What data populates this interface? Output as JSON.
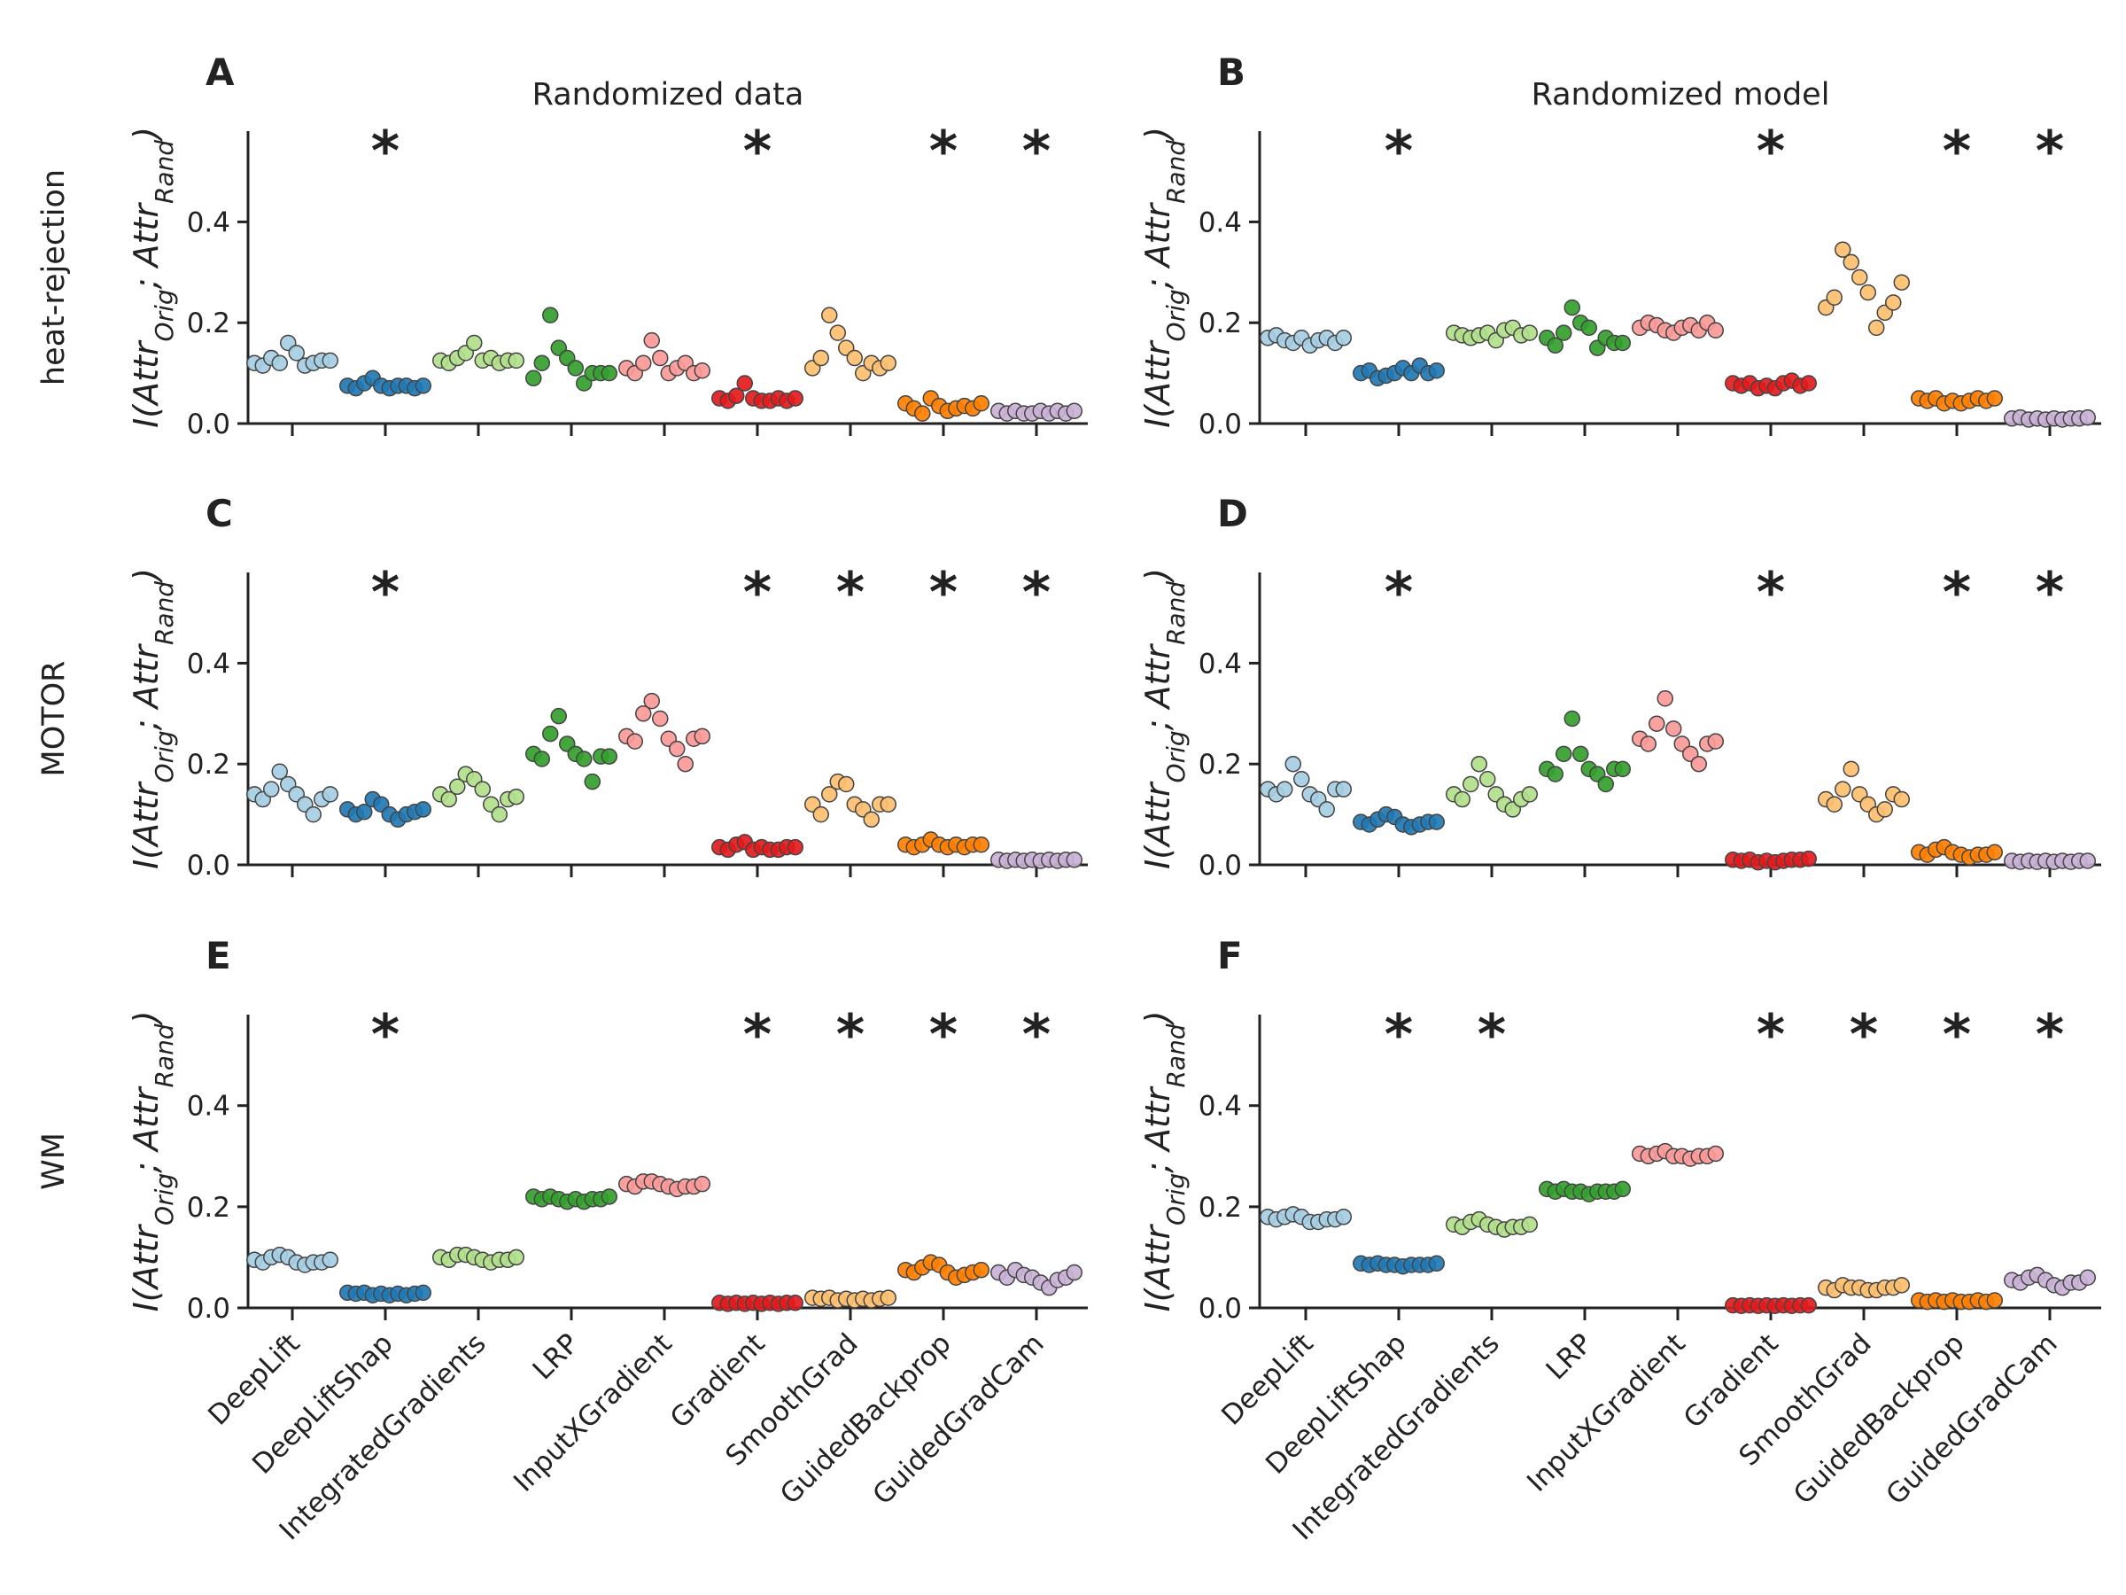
{
  "chart_data": {
    "type": "scatter",
    "subtype": "strip/swarm plot",
    "column_titles": [
      "Randomized data",
      "Randomized model"
    ],
    "row_labels": [
      "heat-rejection",
      "MOTOR",
      "WM"
    ],
    "categories": [
      "DeepLift",
      "DeepLiftShap",
      "IntegratedGradients",
      "LRP",
      "InputXGradient",
      "Gradient",
      "SmoothGrad",
      "GuidedBackprop",
      "GuidedGradCam"
    ],
    "category_colors": [
      "#a6cee3",
      "#1f78b4",
      "#b2df8a",
      "#33a02c",
      "#fb9a99",
      "#e31a1c",
      "#fdbf6f",
      "#ff7f00",
      "#cab2d6"
    ],
    "ylabel": "I(Attr_Orig; Attr_Rand)",
    "ylabel_parts": {
      "open": "I(Attr",
      "sub1": "Orig",
      "mid": "; Attr",
      "sub2": "Rand",
      "close": ")"
    },
    "ylim": [
      0,
      0.58
    ],
    "yticks": [
      "0.0",
      "0.2",
      "0.4"
    ],
    "significance_marker": "*",
    "panels": [
      {
        "letter": "A",
        "row": "heat-rejection",
        "condition": "Randomized data",
        "significant": [
          "DeepLiftShap",
          "Gradient",
          "GuidedBackprop",
          "GuidedGradCam"
        ],
        "values": [
          [
            0.12,
            0.115,
            0.13,
            0.12,
            0.16,
            0.14,
            0.115,
            0.12,
            0.125,
            0.125
          ],
          [
            0.075,
            0.07,
            0.08,
            0.09,
            0.075,
            0.07,
            0.075,
            0.075,
            0.07,
            0.075
          ],
          [
            0.125,
            0.12,
            0.13,
            0.14,
            0.16,
            0.125,
            0.13,
            0.12,
            0.125,
            0.125
          ],
          [
            0.09,
            0.12,
            0.215,
            0.15,
            0.13,
            0.11,
            0.08,
            0.1,
            0.1,
            0.1
          ],
          [
            0.11,
            0.1,
            0.12,
            0.165,
            0.13,
            0.1,
            0.11,
            0.12,
            0.1,
            0.105
          ],
          [
            0.05,
            0.045,
            0.055,
            0.08,
            0.05,
            0.045,
            0.045,
            0.05,
            0.045,
            0.05
          ],
          [
            0.11,
            0.13,
            0.215,
            0.18,
            0.15,
            0.13,
            0.1,
            0.12,
            0.11,
            0.12
          ],
          [
            0.04,
            0.03,
            0.02,
            0.05,
            0.035,
            0.025,
            0.03,
            0.035,
            0.03,
            0.04
          ],
          [
            0.025,
            0.02,
            0.025,
            0.02,
            0.02,
            0.025,
            0.02,
            0.025,
            0.02,
            0.025
          ]
        ]
      },
      {
        "letter": "B",
        "row": "heat-rejection",
        "condition": "Randomized model",
        "significant": [
          "DeepLiftShap",
          "Gradient",
          "GuidedBackprop",
          "GuidedGradCam"
        ],
        "values": [
          [
            0.17,
            0.175,
            0.165,
            0.16,
            0.17,
            0.155,
            0.165,
            0.17,
            0.16,
            0.17
          ],
          [
            0.1,
            0.105,
            0.09,
            0.095,
            0.1,
            0.11,
            0.1,
            0.115,
            0.1,
            0.105
          ],
          [
            0.18,
            0.175,
            0.17,
            0.175,
            0.18,
            0.165,
            0.185,
            0.19,
            0.175,
            0.18
          ],
          [
            0.17,
            0.155,
            0.18,
            0.23,
            0.2,
            0.19,
            0.15,
            0.17,
            0.16,
            0.16
          ],
          [
            0.19,
            0.2,
            0.195,
            0.185,
            0.18,
            0.19,
            0.195,
            0.185,
            0.2,
            0.185
          ],
          [
            0.08,
            0.075,
            0.08,
            0.07,
            0.075,
            0.07,
            0.08,
            0.085,
            0.075,
            0.08
          ],
          [
            0.23,
            0.25,
            0.345,
            0.32,
            0.29,
            0.26,
            0.19,
            0.22,
            0.24,
            0.28
          ],
          [
            0.05,
            0.045,
            0.05,
            0.04,
            0.045,
            0.04,
            0.045,
            0.05,
            0.045,
            0.05
          ],
          [
            0.01,
            0.012,
            0.008,
            0.01,
            0.008,
            0.01,
            0.008,
            0.01,
            0.01,
            0.012
          ]
        ]
      },
      {
        "letter": "C",
        "row": "MOTOR",
        "condition": "Randomized data",
        "significant": [
          "DeepLiftShap",
          "Gradient",
          "SmoothGrad",
          "GuidedBackprop",
          "GuidedGradCam"
        ],
        "values": [
          [
            0.14,
            0.13,
            0.15,
            0.185,
            0.16,
            0.14,
            0.12,
            0.1,
            0.13,
            0.14
          ],
          [
            0.11,
            0.1,
            0.105,
            0.13,
            0.12,
            0.1,
            0.09,
            0.1,
            0.105,
            0.11
          ],
          [
            0.14,
            0.13,
            0.155,
            0.18,
            0.17,
            0.15,
            0.12,
            0.1,
            0.13,
            0.135
          ],
          [
            0.22,
            0.21,
            0.26,
            0.295,
            0.24,
            0.22,
            0.21,
            0.165,
            0.215,
            0.215
          ],
          [
            0.255,
            0.245,
            0.3,
            0.325,
            0.29,
            0.25,
            0.23,
            0.2,
            0.25,
            0.255
          ],
          [
            0.035,
            0.03,
            0.04,
            0.045,
            0.03,
            0.035,
            0.03,
            0.03,
            0.035,
            0.035
          ],
          [
            0.12,
            0.1,
            0.14,
            0.165,
            0.16,
            0.12,
            0.11,
            0.09,
            0.12,
            0.12
          ],
          [
            0.04,
            0.035,
            0.04,
            0.05,
            0.04,
            0.035,
            0.04,
            0.035,
            0.04,
            0.04
          ],
          [
            0.01,
            0.008,
            0.01,
            0.008,
            0.01,
            0.008,
            0.01,
            0.008,
            0.01,
            0.01
          ]
        ]
      },
      {
        "letter": "D",
        "row": "MOTOR",
        "condition": "Randomized model",
        "significant": [
          "DeepLiftShap",
          "Gradient",
          "GuidedBackprop",
          "GuidedGradCam"
        ],
        "values": [
          [
            0.15,
            0.14,
            0.15,
            0.2,
            0.17,
            0.14,
            0.13,
            0.11,
            0.15,
            0.15
          ],
          [
            0.085,
            0.08,
            0.09,
            0.1,
            0.095,
            0.08,
            0.075,
            0.08,
            0.085,
            0.085
          ],
          [
            0.14,
            0.13,
            0.16,
            0.2,
            0.17,
            0.14,
            0.12,
            0.11,
            0.13,
            0.14
          ],
          [
            0.19,
            0.18,
            0.22,
            0.29,
            0.22,
            0.19,
            0.18,
            0.16,
            0.19,
            0.19
          ],
          [
            0.25,
            0.24,
            0.28,
            0.33,
            0.27,
            0.24,
            0.22,
            0.2,
            0.24,
            0.245
          ],
          [
            0.01,
            0.008,
            0.01,
            0.005,
            0.008,
            0.005,
            0.008,
            0.01,
            0.01,
            0.012
          ],
          [
            0.13,
            0.12,
            0.15,
            0.19,
            0.14,
            0.12,
            0.1,
            0.11,
            0.14,
            0.13
          ],
          [
            0.025,
            0.02,
            0.03,
            0.035,
            0.025,
            0.02,
            0.015,
            0.02,
            0.02,
            0.025
          ],
          [
            0.008,
            0.006,
            0.008,
            0.006,
            0.008,
            0.006,
            0.008,
            0.006,
            0.008,
            0.008
          ]
        ]
      },
      {
        "letter": "E",
        "row": "WM",
        "condition": "Randomized data",
        "significant": [
          "DeepLiftShap",
          "Gradient",
          "SmoothGrad",
          "GuidedBackprop",
          "GuidedGradCam"
        ],
        "values": [
          [
            0.095,
            0.09,
            0.1,
            0.105,
            0.1,
            0.09,
            0.085,
            0.09,
            0.09,
            0.095
          ],
          [
            0.03,
            0.028,
            0.03,
            0.025,
            0.028,
            0.025,
            0.028,
            0.025,
            0.028,
            0.03
          ],
          [
            0.1,
            0.095,
            0.105,
            0.105,
            0.1,
            0.095,
            0.09,
            0.095,
            0.095,
            0.1
          ],
          [
            0.22,
            0.215,
            0.22,
            0.215,
            0.21,
            0.215,
            0.21,
            0.215,
            0.215,
            0.22
          ],
          [
            0.245,
            0.24,
            0.25,
            0.25,
            0.245,
            0.24,
            0.235,
            0.24,
            0.24,
            0.245
          ],
          [
            0.01,
            0.008,
            0.01,
            0.008,
            0.01,
            0.008,
            0.01,
            0.008,
            0.01,
            0.01
          ],
          [
            0.02,
            0.018,
            0.02,
            0.015,
            0.018,
            0.015,
            0.018,
            0.015,
            0.018,
            0.02
          ],
          [
            0.075,
            0.07,
            0.08,
            0.09,
            0.085,
            0.07,
            0.06,
            0.065,
            0.07,
            0.075
          ],
          [
            0.07,
            0.06,
            0.075,
            0.065,
            0.06,
            0.05,
            0.04,
            0.055,
            0.06,
            0.07
          ]
        ]
      },
      {
        "letter": "F",
        "row": "WM",
        "condition": "Randomized model",
        "significant": [
          "DeepLiftShap",
          "IntegratedGradients",
          "Gradient",
          "SmoothGrad",
          "GuidedBackprop",
          "GuidedGradCam"
        ],
        "values": [
          [
            0.18,
            0.175,
            0.18,
            0.185,
            0.18,
            0.17,
            0.17,
            0.175,
            0.175,
            0.18
          ],
          [
            0.088,
            0.085,
            0.088,
            0.085,
            0.085,
            0.082,
            0.085,
            0.085,
            0.085,
            0.088
          ],
          [
            0.165,
            0.16,
            0.17,
            0.175,
            0.165,
            0.16,
            0.155,
            0.16,
            0.16,
            0.165
          ],
          [
            0.235,
            0.23,
            0.235,
            0.23,
            0.23,
            0.225,
            0.23,
            0.23,
            0.23,
            0.235
          ],
          [
            0.305,
            0.3,
            0.305,
            0.31,
            0.3,
            0.3,
            0.295,
            0.3,
            0.3,
            0.305
          ],
          [
            0.005,
            0.004,
            0.005,
            0.004,
            0.005,
            0.004,
            0.005,
            0.004,
            0.005,
            0.005
          ],
          [
            0.04,
            0.035,
            0.045,
            0.04,
            0.04,
            0.035,
            0.035,
            0.04,
            0.04,
            0.045
          ],
          [
            0.015,
            0.012,
            0.015,
            0.012,
            0.015,
            0.012,
            0.012,
            0.015,
            0.012,
            0.015
          ],
          [
            0.055,
            0.05,
            0.06,
            0.065,
            0.055,
            0.045,
            0.04,
            0.05,
            0.05,
            0.06
          ]
        ]
      }
    ]
  }
}
